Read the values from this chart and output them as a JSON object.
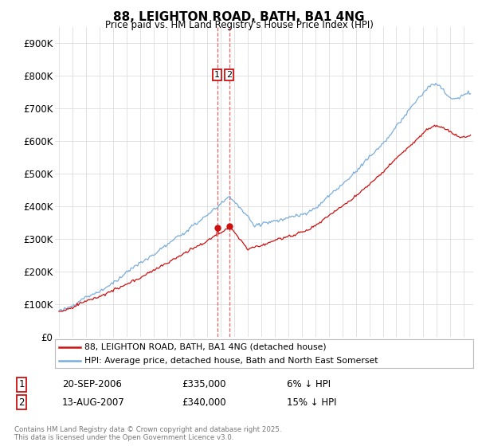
{
  "title": "88, LEIGHTON ROAD, BATH, BA1 4NG",
  "subtitle": "Price paid vs. HM Land Registry's House Price Index (HPI)",
  "ylabel_ticks": [
    "£0",
    "£100K",
    "£200K",
    "£300K",
    "£400K",
    "£500K",
    "£600K",
    "£700K",
    "£800K",
    "£900K"
  ],
  "ytick_values": [
    0,
    100000,
    200000,
    300000,
    400000,
    500000,
    600000,
    700000,
    800000,
    900000
  ],
  "ylim": [
    0,
    950000
  ],
  "hpi_color": "#7aaddc",
  "price_color": "#cc1111",
  "dashed_color": "#ee6666",
  "legend_label_price": "88, LEIGHTON ROAD, BATH, BA1 4NG (detached house)",
  "legend_label_hpi": "HPI: Average price, detached house, Bath and North East Somerset",
  "transaction1_date": "20-SEP-2006",
  "transaction1_price": "£335,000",
  "transaction1_pct": "6% ↓ HPI",
  "transaction1_year": 2006.72,
  "transaction2_date": "13-AUG-2007",
  "transaction2_price": "£340,000",
  "transaction2_pct": "15% ↓ HPI",
  "transaction2_year": 2007.62,
  "footer": "Contains HM Land Registry data © Crown copyright and database right 2025.\nThis data is licensed under the Open Government Licence v3.0.",
  "background_color": "#ffffff",
  "grid_color": "#dddddd"
}
